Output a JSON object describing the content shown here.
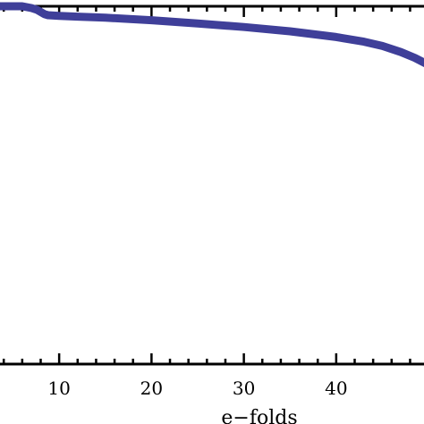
{
  "chart_data": {
    "type": "line",
    "xlabel": "e−folds",
    "ylabel": "",
    "title": "",
    "xlim": [
      3.4,
      49.7
    ],
    "ylim": [
      0,
      1
    ],
    "x_ticks": [
      10,
      20,
      30,
      40
    ],
    "x_tick_labels": [
      "10",
      "20",
      "30",
      "40"
    ],
    "grid": false,
    "series": [
      {
        "color": "#3f3f99",
        "x": [
          3.4,
          4.0,
          5.0,
          6.0,
          7.0,
          7.6,
          8.0,
          8.4,
          8.8,
          9.4,
          10.0,
          12.0,
          15.0,
          20.0,
          25.0,
          30.0,
          35.0,
          40.0,
          43.0,
          45.0,
          47.0,
          48.5,
          49.7
        ],
        "y": [
          1.0,
          1.0,
          1.0,
          1.0,
          0.995,
          0.99,
          0.984,
          0.978,
          0.975,
          0.974,
          0.973,
          0.971,
          0.968,
          0.961,
          0.952,
          0.942,
          0.93,
          0.914,
          0.901,
          0.889,
          0.872,
          0.856,
          0.84
        ]
      }
    ]
  }
}
